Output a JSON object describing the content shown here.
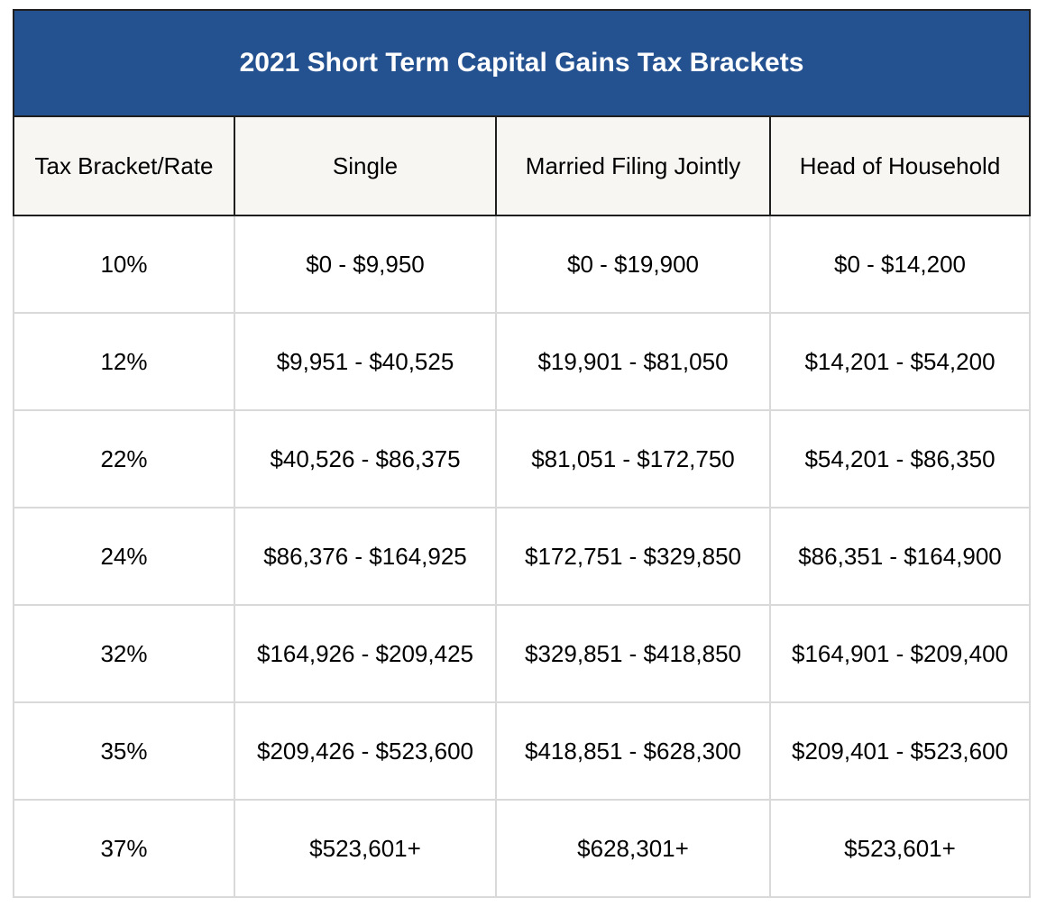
{
  "title": "2021 Short Term Capital Gains Tax Brackets",
  "colors": {
    "header_bg": "#245190",
    "header_text": "#ffffff",
    "column_header_bg": "#f7f6f3"
  },
  "columns": [
    "Tax Bracket/Rate",
    "Single",
    "Married Filing Jointly",
    "Head of Household"
  ],
  "rows": [
    [
      "10%",
      "$0 - $9,950",
      "$0 - $19,900",
      "$0 - $14,200"
    ],
    [
      "12%",
      "$9,951 - $40,525",
      "$19,901 - $81,050",
      "$14,201 - $54,200"
    ],
    [
      "22%",
      "$40,526 - $86,375",
      "$81,051 - $172,750",
      "$54,201 - $86,350"
    ],
    [
      "24%",
      "$86,376 - $164,925",
      "$172,751 - $329,850",
      "$86,351 - $164,900"
    ],
    [
      "32%",
      "$164,926 - $209,425",
      "$329,851 - $418,850",
      "$164,901 - $209,400"
    ],
    [
      "35%",
      "$209,426 - $523,600",
      "$418,851 - $628,300",
      "$209,401 - $523,600"
    ],
    [
      "37%",
      "$523,601+",
      "$628,301+",
      "$523,601+"
    ]
  ]
}
